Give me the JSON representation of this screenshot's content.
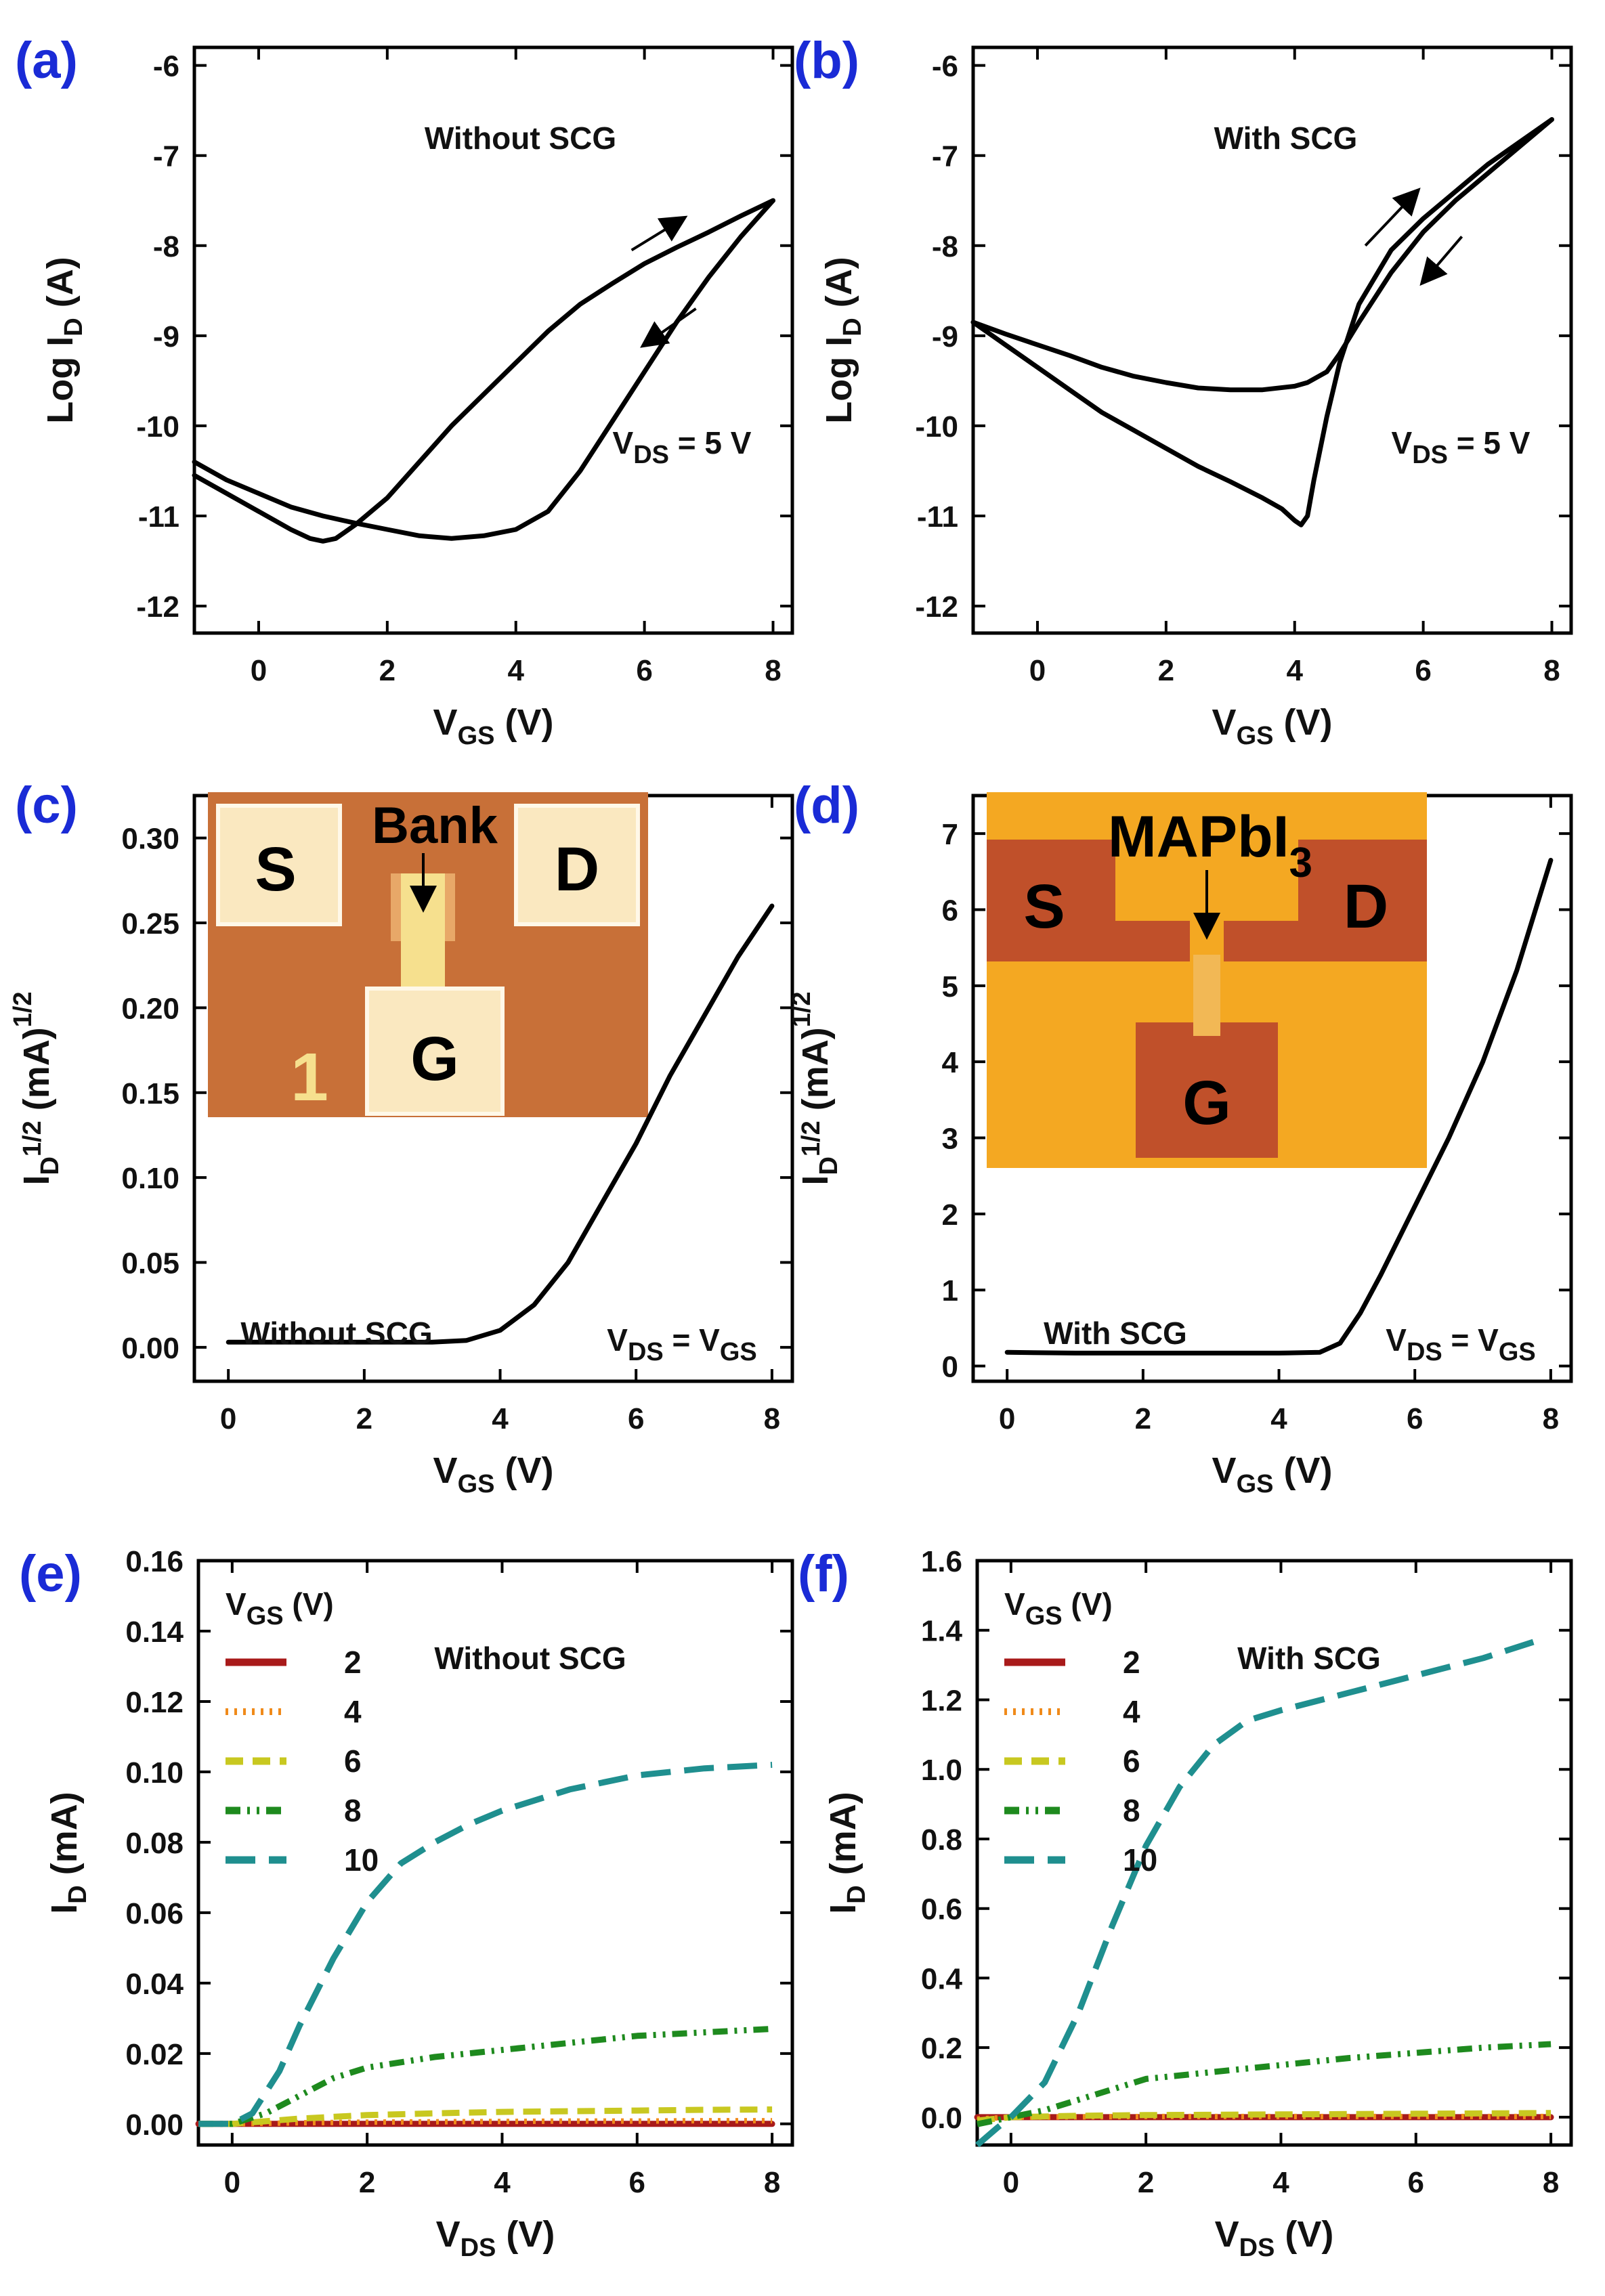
{
  "colors": {
    "panel_label": "#1a2bd6",
    "black": "#000000",
    "vgs2": "#a81a1a",
    "vgs4": "#f08a1a",
    "vgs6": "#c8c820",
    "vgs8": "#1e8a1e",
    "vgs10": "#1f8f8f"
  },
  "chart_data": [
    {
      "panel": "(a)",
      "type": "line",
      "annotation": "Without SCG",
      "condition": "V_DS = 5 V",
      "xlabel": "V_GS (V)",
      "ylabel": "Log I_D (A)",
      "xlim": [
        -1,
        8.3
      ],
      "ylim": [
        -12.3,
        -5.8
      ],
      "xticks": [
        0,
        2,
        4,
        6,
        8
      ],
      "yticks": [
        -12,
        -11,
        -10,
        -9,
        -8,
        -7,
        -6
      ],
      "series": [
        {
          "name": "forward",
          "x": [
            -1,
            -0.5,
            0,
            0.5,
            0.8,
            1.0,
            1.2,
            1.5,
            2,
            2.5,
            3,
            3.5,
            4,
            4.5,
            5,
            5.5,
            6,
            6.5,
            7,
            7.5,
            8
          ],
          "y": [
            -10.55,
            -10.75,
            -10.95,
            -11.15,
            -11.25,
            -11.28,
            -11.25,
            -11.1,
            -10.8,
            -10.4,
            -10.0,
            -9.65,
            -9.3,
            -8.95,
            -8.65,
            -8.42,
            -8.2,
            -8.02,
            -7.85,
            -7.67,
            -7.5
          ]
        },
        {
          "name": "reverse",
          "x": [
            8,
            7.5,
            7,
            6.5,
            6,
            5.5,
            5,
            4.5,
            4,
            3.5,
            3,
            2.5,
            2,
            1.5,
            1,
            0.5,
            0,
            -0.5,
            -1
          ],
          "y": [
            -7.5,
            -7.9,
            -8.35,
            -8.85,
            -9.4,
            -9.95,
            -10.5,
            -10.95,
            -11.15,
            -11.22,
            -11.25,
            -11.22,
            -11.15,
            -11.08,
            -11.0,
            -10.9,
            -10.75,
            -10.6,
            -10.4
          ]
        }
      ],
      "arrows": [
        "forward",
        "reverse"
      ]
    },
    {
      "panel": "(b)",
      "type": "line",
      "annotation": "With SCG",
      "condition": "V_DS = 5 V",
      "xlabel": "V_GS (V)",
      "ylabel": "Log I_D (A)",
      "xlim": [
        -1,
        8.3
      ],
      "ylim": [
        -12.3,
        -5.8
      ],
      "xticks": [
        0,
        2,
        4,
        6,
        8
      ],
      "yticks": [
        -12,
        -11,
        -10,
        -9,
        -8,
        -7,
        -6
      ],
      "series": [
        {
          "name": "forward",
          "x": [
            -1,
            -0.5,
            0,
            0.5,
            1,
            1.5,
            2,
            2.5,
            3,
            3.5,
            3.8,
            4.0,
            4.1,
            4.2,
            4.3,
            4.5,
            4.7,
            5,
            5.5,
            6,
            6.5,
            7,
            7.5,
            8
          ],
          "y": [
            -8.85,
            -9.1,
            -9.35,
            -9.6,
            -9.85,
            -10.05,
            -10.25,
            -10.45,
            -10.62,
            -10.8,
            -10.92,
            -11.05,
            -11.1,
            -11.0,
            -10.6,
            -9.9,
            -9.3,
            -8.65,
            -8.05,
            -7.7,
            -7.4,
            -7.1,
            -6.85,
            -6.6
          ]
        },
        {
          "name": "reverse",
          "x": [
            8,
            7.5,
            7,
            6.5,
            6,
            5.5,
            5,
            4.7,
            4.5,
            4.2,
            4,
            3.5,
            3,
            2.5,
            2,
            1.5,
            1,
            0.5,
            0,
            -0.5,
            -1
          ],
          "y": [
            -6.6,
            -6.9,
            -7.2,
            -7.5,
            -7.85,
            -8.3,
            -8.85,
            -9.2,
            -9.4,
            -9.52,
            -9.56,
            -9.6,
            -9.6,
            -9.58,
            -9.52,
            -9.45,
            -9.35,
            -9.22,
            -9.1,
            -8.98,
            -8.85
          ]
        }
      ],
      "arrows": [
        "forward",
        "reverse"
      ]
    },
    {
      "panel": "(c)",
      "type": "line",
      "annotation": "Without SCG",
      "condition": "V_DS = V_GS",
      "xlabel": "V_GS (V)",
      "ylabel": "I_D^1/2 (mA)^1/2",
      "xlim": [
        -0.5,
        8.3
      ],
      "ylim": [
        -0.02,
        0.325
      ],
      "xticks": [
        0,
        2,
        4,
        6,
        8
      ],
      "yticks": [
        0.0,
        0.05,
        0.1,
        0.15,
        0.2,
        0.25,
        0.3
      ],
      "ytick_labels": [
        "0.00",
        "0.05",
        "0.10",
        "0.15",
        "0.20",
        "0.25",
        "0.30"
      ],
      "series": [
        {
          "name": "sqrt(ID)",
          "x": [
            0,
            1,
            2,
            3,
            3.5,
            4,
            4.5,
            5,
            5.5,
            6,
            6.5,
            7,
            7.5,
            8
          ],
          "y": [
            0.003,
            0.003,
            0.003,
            0.003,
            0.004,
            0.01,
            0.025,
            0.05,
            0.085,
            0.12,
            0.16,
            0.195,
            0.23,
            0.26
          ]
        }
      ],
      "inset": {
        "labels": [
          "S",
          "D",
          "G",
          "Bank",
          "1"
        ]
      }
    },
    {
      "panel": "(d)",
      "type": "line",
      "annotation": "With SCG",
      "condition": "V_DS = V_GS",
      "xlabel": "V_GS (V)",
      "ylabel": "I_D^1/2 (mA)^1/2",
      "xlim": [
        -0.5,
        8.3
      ],
      "ylim": [
        -0.2,
        7.5
      ],
      "xticks": [
        0,
        2,
        4,
        6,
        8
      ],
      "yticks": [
        0,
        1,
        2,
        3,
        4,
        5,
        6,
        7
      ],
      "series": [
        {
          "name": "sqrt(ID)",
          "x": [
            0,
            1,
            2,
            3,
            4,
            4.6,
            4.9,
            5.2,
            5.5,
            6,
            6.5,
            7,
            7.5,
            8
          ],
          "y": [
            0.18,
            0.17,
            0.17,
            0.17,
            0.17,
            0.18,
            0.3,
            0.7,
            1.2,
            2.1,
            3.0,
            4.0,
            5.2,
            6.65
          ]
        }
      ],
      "inset": {
        "labels": [
          "S",
          "D",
          "G",
          "MAPbI",
          "3"
        ]
      }
    },
    {
      "panel": "(e)",
      "type": "line",
      "annotation": "Without SCG",
      "xlabel": "V_DS (V)",
      "ylabel": "I_D (mA)",
      "xlim": [
        -0.5,
        8.3
      ],
      "ylim": [
        -0.006,
        0.16
      ],
      "xticks": [
        0,
        2,
        4,
        6,
        8
      ],
      "yticks": [
        0.0,
        0.02,
        0.04,
        0.06,
        0.08,
        0.1,
        0.12,
        0.14,
        0.16
      ],
      "ytick_labels": [
        "0.00",
        "0.02",
        "0.04",
        "0.06",
        "0.08",
        "0.10",
        "0.12",
        "0.14",
        "0.16"
      ],
      "legend_title": "V_GS (V)",
      "series": [
        {
          "name": "2",
          "x": [
            -0.5,
            0,
            1,
            2,
            3,
            4,
            5,
            6,
            7,
            8
          ],
          "y": [
            0,
            0,
            0,
            0,
            0,
            0,
            0,
            0,
            0,
            0
          ]
        },
        {
          "name": "4",
          "x": [
            -0.5,
            0,
            1,
            2,
            3,
            4,
            5,
            6,
            7,
            8
          ],
          "y": [
            0,
            0,
            0.0003,
            0.0005,
            0.0006,
            0.0007,
            0.0008,
            0.0008,
            0.0009,
            0.0009
          ]
        },
        {
          "name": "6",
          "x": [
            -0.5,
            0,
            1,
            2,
            3,
            4,
            5,
            6,
            7,
            8
          ],
          "y": [
            0,
            0,
            0.0015,
            0.0025,
            0.003,
            0.0034,
            0.0036,
            0.0038,
            0.004,
            0.0041
          ]
        },
        {
          "name": "8",
          "x": [
            -0.5,
            0,
            0.5,
            1,
            1.5,
            2,
            3,
            4,
            5,
            6,
            7,
            8
          ],
          "y": [
            0,
            0,
            0.003,
            0.008,
            0.013,
            0.016,
            0.019,
            0.021,
            0.023,
            0.025,
            0.026,
            0.027
          ]
        },
        {
          "name": "10",
          "x": [
            -0.5,
            0,
            0.3,
            0.7,
            1,
            1.5,
            2,
            2.5,
            3,
            3.5,
            4,
            5,
            6,
            7,
            8
          ],
          "y": [
            0,
            0,
            0.003,
            0.015,
            0.028,
            0.047,
            0.063,
            0.074,
            0.08,
            0.085,
            0.089,
            0.095,
            0.099,
            0.101,
            0.102
          ]
        }
      ]
    },
    {
      "panel": "(f)",
      "type": "line",
      "annotation": "With SCG",
      "xlabel": "V_DS (V)",
      "ylabel": "I_D (mA)",
      "xlim": [
        -0.5,
        8.3
      ],
      "ylim": [
        -0.08,
        1.6
      ],
      "xticks": [
        0,
        2,
        4,
        6,
        8
      ],
      "yticks": [
        0.0,
        0.2,
        0.4,
        0.6,
        0.8,
        1.0,
        1.2,
        1.4,
        1.6
      ],
      "ytick_labels": [
        "0.0",
        "0.2",
        "0.4",
        "0.6",
        "0.8",
        "1.0",
        "1.2",
        "1.4",
        "1.6"
      ],
      "legend_title": "V_GS (V)",
      "series": [
        {
          "name": "2",
          "x": [
            -0.5,
            0,
            1,
            2,
            3,
            4,
            5,
            6,
            7,
            8
          ],
          "y": [
            0,
            0,
            0,
            0,
            0,
            0,
            0,
            0,
            0,
            0
          ]
        },
        {
          "name": "4",
          "x": [
            -0.5,
            0,
            1,
            2,
            3,
            4,
            5,
            6,
            7,
            8
          ],
          "y": [
            -0.005,
            0,
            0.001,
            0.002,
            0.002,
            0.002,
            0.002,
            0.002,
            0.002,
            0.002
          ]
        },
        {
          "name": "6",
          "x": [
            -0.5,
            0,
            1,
            2,
            3,
            4,
            5,
            6,
            7,
            8
          ],
          "y": [
            -0.01,
            0,
            0.004,
            0.006,
            0.007,
            0.008,
            0.009,
            0.01,
            0.011,
            0.012
          ]
        },
        {
          "name": "8",
          "x": [
            -0.5,
            0,
            0.5,
            1,
            1.5,
            2,
            3,
            4,
            5,
            6,
            7,
            8
          ],
          "y": [
            -0.02,
            0,
            0.02,
            0.05,
            0.08,
            0.11,
            0.13,
            0.15,
            0.17,
            0.185,
            0.2,
            0.21
          ]
        },
        {
          "name": "10",
          "x": [
            -0.5,
            -0.2,
            0,
            0.5,
            1,
            1.5,
            2,
            2.5,
            3,
            3.5,
            4,
            5,
            6,
            7,
            7.8
          ],
          "y": [
            -0.08,
            -0.03,
            0,
            0.1,
            0.3,
            0.55,
            0.78,
            0.95,
            1.07,
            1.14,
            1.17,
            1.22,
            1.27,
            1.32,
            1.37
          ]
        }
      ]
    }
  ]
}
